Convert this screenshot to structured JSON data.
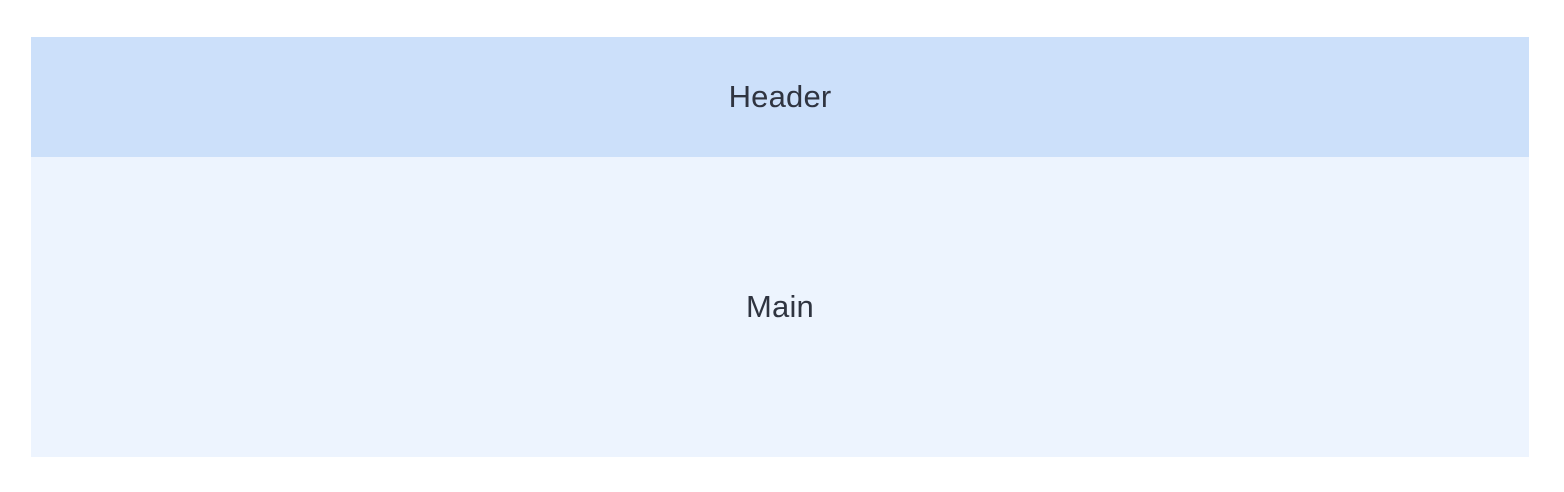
{
  "header": {
    "label": "Header",
    "background": "#cce0fa"
  },
  "main": {
    "label": "Main",
    "background": "#edf4fe"
  },
  "colors": {
    "text": "#2f3440",
    "page_background": "#ffffff"
  }
}
